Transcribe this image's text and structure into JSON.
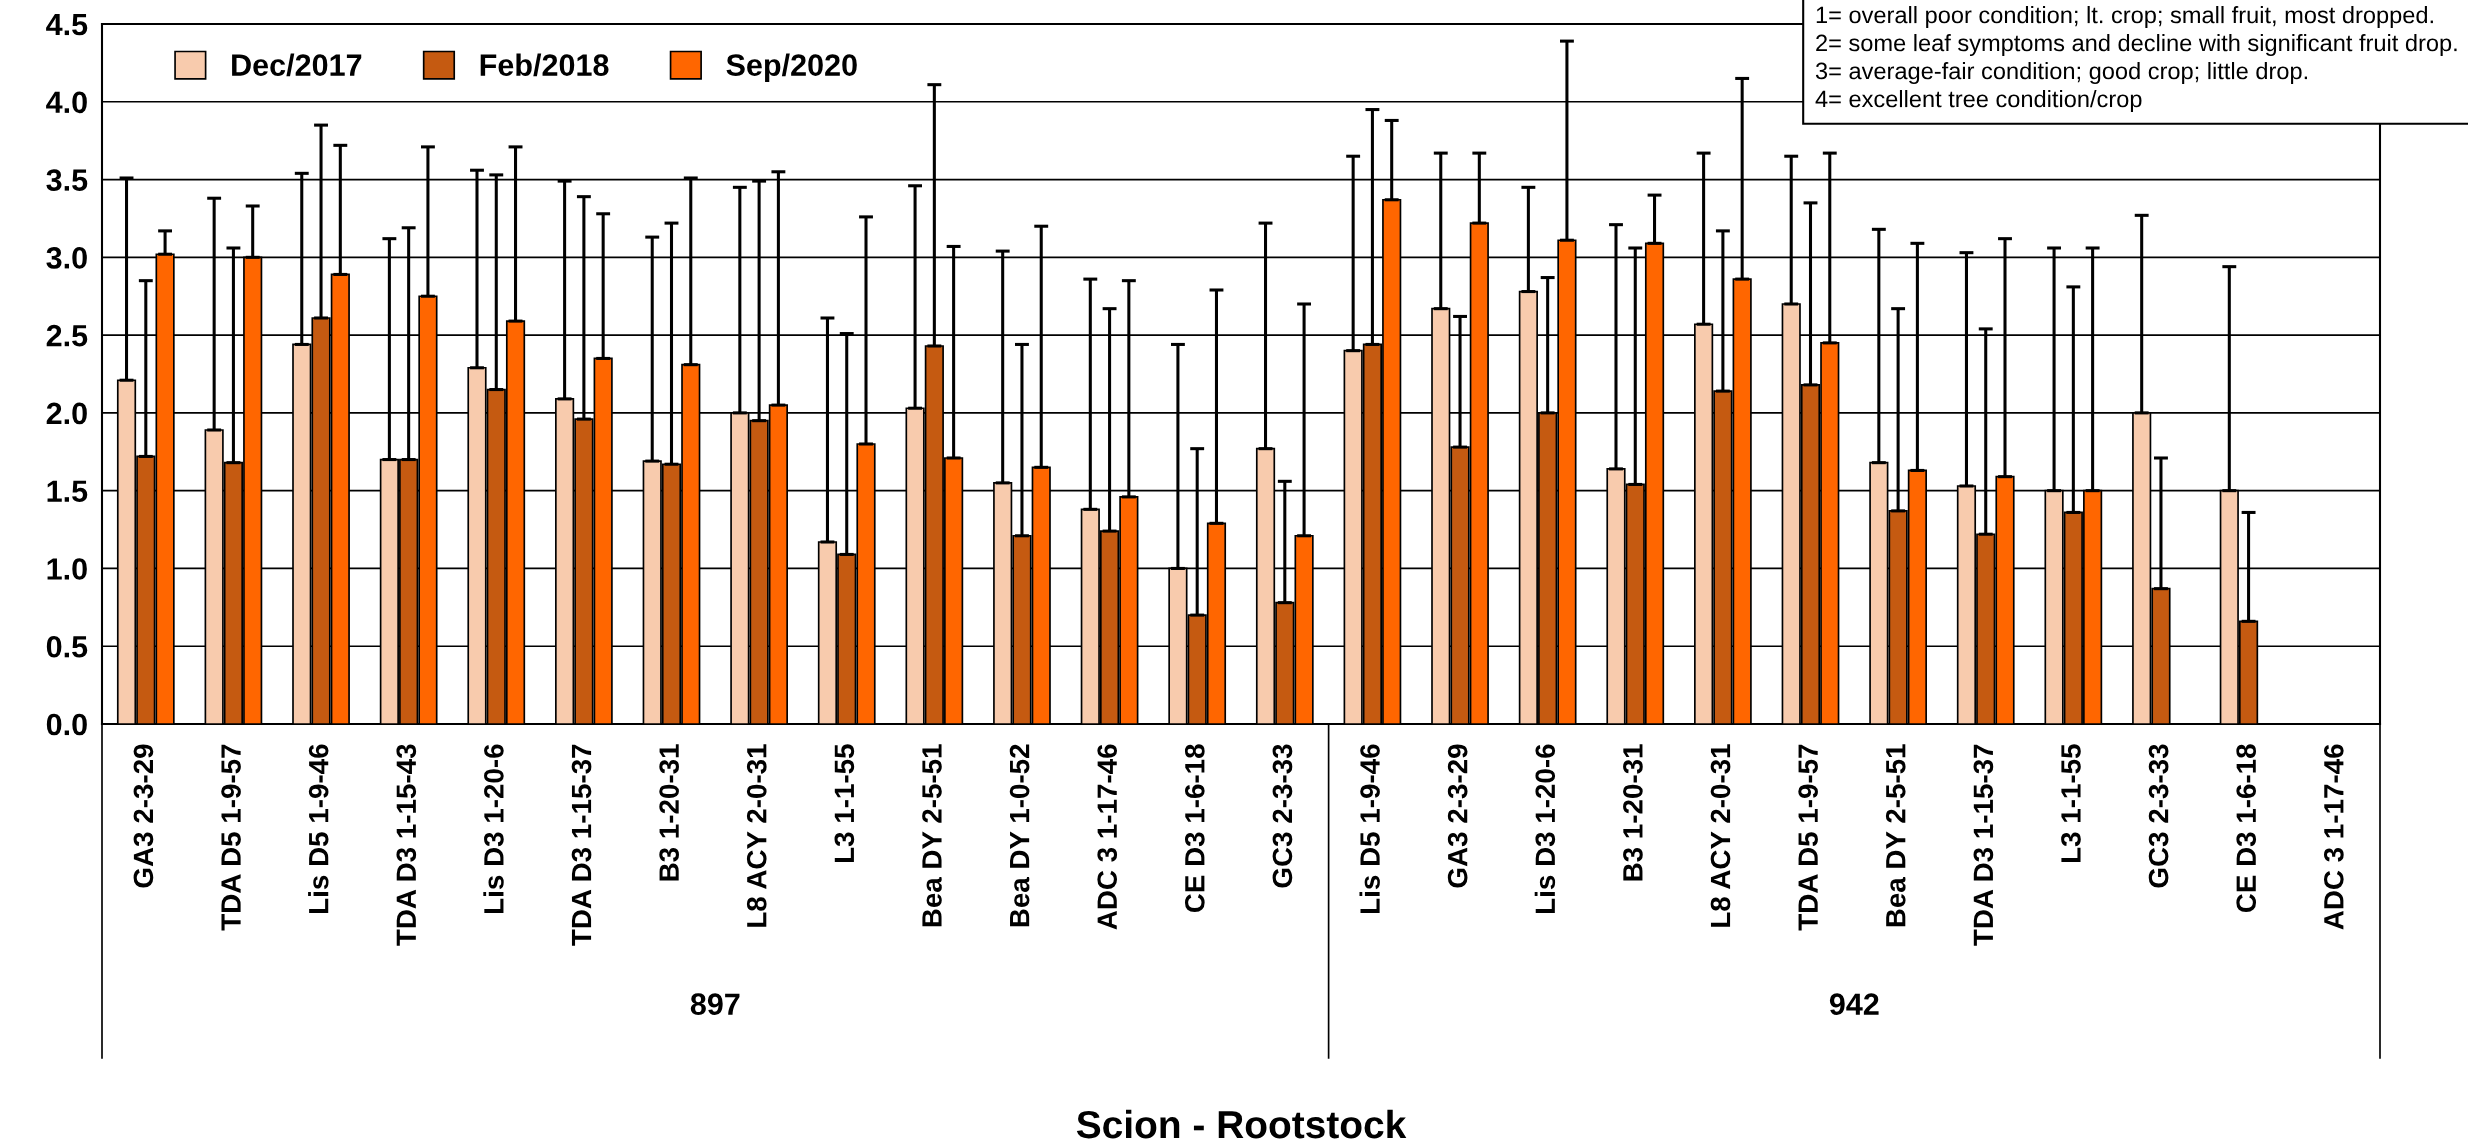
{
  "chart_data": {
    "type": "bar",
    "xlabel": "Scion - Rootstock",
    "categories": [
      "GA3 2-3-29",
      "TDA D5 1-9-57",
      "Lis D5 1-9-46",
      "TDA D3 1-15-43",
      "Lis D3 1-20-6",
      "TDA D3 1-15-37",
      "B3 1-20-31",
      "L8 ACY 2-0-31",
      "L3 1-1-55",
      "Bea DY 2-5-51",
      "Bea DY 1-0-52",
      "ADC 3 1-17-46",
      "CE D3 1-6-18",
      "GC3 2-3-33",
      "Lis D5 1-9-46",
      "GA3 2-3-29",
      "Lis D3 1-20-6",
      "B3 1-20-31",
      "L8 ACY 2-0-31",
      "TDA D5 1-9-57",
      "Bea DY 2-5-51",
      "TDA D3 1-15-37",
      "L3 1-1-55",
      "GC3 2-3-33",
      "CE D3 1-6-18",
      "ADC 3 1-17-46"
    ],
    "series": [
      {
        "name": "Dec/2017",
        "color": "#f8cbad",
        "values": [
          2.21,
          1.89,
          2.44,
          1.7,
          2.29,
          2.09,
          1.69,
          2.0,
          1.17,
          2.03,
          1.55,
          1.38,
          1.0,
          1.77,
          2.4,
          2.67,
          2.78,
          1.64,
          2.57,
          2.7,
          1.68,
          1.53,
          1.5,
          2.0,
          1.5,
          null
        ],
        "errors": [
          [
            2.21,
            3.51
          ],
          [
            1.89,
            3.38
          ],
          [
            2.44,
            3.54
          ],
          [
            1.7,
            3.12
          ],
          [
            2.29,
            3.56
          ],
          [
            2.09,
            3.49
          ],
          [
            1.69,
            3.13
          ],
          [
            2.0,
            3.45
          ],
          [
            1.17,
            2.61
          ],
          [
            2.03,
            3.46
          ],
          [
            1.55,
            3.04
          ],
          [
            1.38,
            2.86
          ],
          [
            1.0,
            2.44
          ],
          [
            1.77,
            3.22
          ],
          [
            2.4,
            3.65
          ],
          [
            2.67,
            3.67
          ],
          [
            2.78,
            3.45
          ],
          [
            1.64,
            3.21
          ],
          [
            2.57,
            3.67
          ],
          [
            2.7,
            3.65
          ],
          [
            1.68,
            3.18
          ],
          [
            1.53,
            3.03
          ],
          [
            1.5,
            3.06
          ],
          [
            2.0,
            3.27
          ],
          [
            1.5,
            2.94
          ],
          null
        ]
      },
      {
        "name": "Feb/2018",
        "color": "#c55a11",
        "values": [
          1.72,
          1.68,
          2.61,
          1.7,
          2.15,
          1.96,
          1.67,
          1.95,
          1.09,
          2.43,
          1.21,
          1.24,
          0.7,
          0.78,
          2.44,
          1.78,
          2.0,
          1.54,
          2.14,
          2.18,
          1.37,
          1.22,
          1.36,
          0.87,
          0.66,
          null
        ],
        "errors": [
          [
            1.72,
            2.85
          ],
          [
            1.68,
            3.06
          ],
          [
            2.61,
            3.85
          ],
          [
            1.7,
            3.19
          ],
          [
            2.15,
            3.53
          ],
          [
            1.96,
            3.39
          ],
          [
            1.67,
            3.22
          ],
          [
            1.95,
            3.49
          ],
          [
            1.09,
            2.51
          ],
          [
            2.43,
            4.11
          ],
          [
            1.21,
            2.44
          ],
          [
            1.24,
            2.67
          ],
          [
            0.7,
            1.77
          ],
          [
            0.78,
            1.56
          ],
          [
            2.44,
            3.95
          ],
          [
            1.78,
            2.62
          ],
          [
            2.0,
            2.87
          ],
          [
            1.54,
            3.06
          ],
          [
            2.14,
            3.17
          ],
          [
            2.18,
            3.35
          ],
          [
            1.37,
            2.67
          ],
          [
            1.22,
            2.54
          ],
          [
            1.36,
            2.81
          ],
          [
            0.87,
            1.71
          ],
          [
            0.66,
            1.36
          ],
          null
        ]
      },
      {
        "name": "Sep/2020",
        "color": "#ff6600",
        "values": [
          3.02,
          3.0,
          2.89,
          2.75,
          2.59,
          2.35,
          2.31,
          2.05,
          1.8,
          1.71,
          1.65,
          1.46,
          1.29,
          1.21,
          3.37,
          3.22,
          3.11,
          3.09,
          2.86,
          2.45,
          1.63,
          1.59,
          1.5,
          null,
          null,
          null
        ],
        "errors": [
          [
            3.02,
            3.17
          ],
          [
            3.0,
            3.33
          ],
          [
            2.89,
            3.72
          ],
          [
            2.75,
            3.71
          ],
          [
            2.59,
            3.71
          ],
          [
            2.35,
            3.28
          ],
          [
            2.31,
            3.51
          ],
          [
            2.05,
            3.55
          ],
          [
            1.8,
            3.26
          ],
          [
            1.71,
            3.07
          ],
          [
            1.65,
            3.2
          ],
          [
            1.46,
            2.85
          ],
          [
            1.29,
            2.79
          ],
          [
            1.21,
            2.7
          ],
          [
            3.37,
            3.88
          ],
          [
            3.22,
            3.67
          ],
          [
            3.11,
            4.39
          ],
          [
            3.09,
            3.4
          ],
          [
            2.86,
            4.15
          ],
          [
            2.45,
            3.67
          ],
          [
            1.63,
            3.09
          ],
          [
            1.59,
            3.12
          ],
          [
            1.5,
            3.06
          ],
          null,
          null,
          null
        ]
      }
    ],
    "ylim": [
      0,
      4.5
    ],
    "yticks": [
      {
        "value": 0,
        "label": "0.0"
      },
      {
        "value": 0.5,
        "label": "0.5"
      },
      {
        "value": 1,
        "label": "1.0"
      },
      {
        "value": 1.5,
        "label": "1.5"
      },
      {
        "value": 2,
        "label": "2.0"
      },
      {
        "value": 2.5,
        "label": "2.5"
      },
      {
        "value": 3,
        "label": "3.0"
      },
      {
        "value": 3.5,
        "label": "3.5"
      },
      {
        "value": 4,
        "label": "4.0"
      },
      {
        "value": 4.5,
        "label": "4.5"
      }
    ],
    "grid": "y",
    "legend": "top left",
    "annotations": [
      "897",
      "942",
      "1= overall poor condition; lt. crop; small fruit, most dropped.\n2= some leaf symptoms and decline with significant fruit drop.\n3= average-fair condition; good crop; little drop.\n4= excellent tree condition/crop"
    ]
  }
}
